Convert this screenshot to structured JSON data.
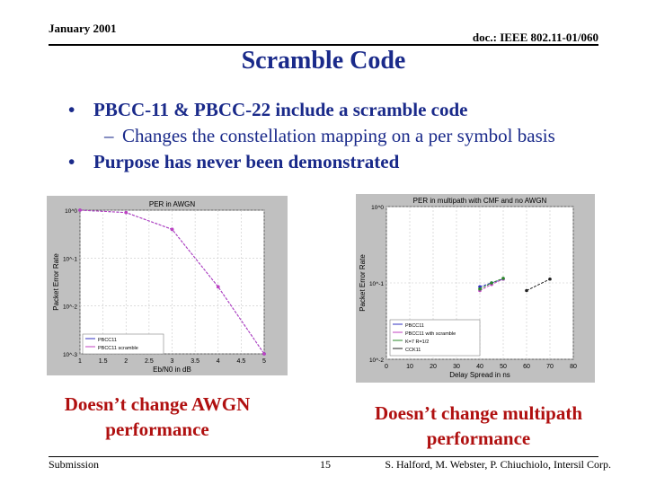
{
  "header": {
    "date": "January 2001",
    "doc": "doc.: IEEE 802.11-01/060"
  },
  "title": "Scramble Code",
  "bullets": [
    {
      "text": "PBCC-11 & PBCC-22 include a scramble code"
    },
    {
      "text": "Purpose has never been demonstrated"
    }
  ],
  "sub_bullet": "Changes the constellation mapping on a per symbol basis",
  "captions": {
    "left": [
      "Doesn’t change AWGN",
      "performance"
    ],
    "right": [
      "Doesn’t change multipath",
      "performance"
    ]
  },
  "footer": {
    "left": "Submission",
    "page": "15",
    "right": "S. Halford, M. Webster, P. Chiuchiolo, Intersil Corp."
  },
  "chart_data": [
    {
      "type": "line",
      "title": "PER in AWGN",
      "xlabel": "Eb/N0 in dB",
      "ylabel": "Packet Error Rate",
      "x_ticks": [
        "1",
        "1.5",
        "2",
        "2.5",
        "3",
        "3.5",
        "4",
        "4.5",
        "5"
      ],
      "y_ticks": [
        "10^0",
        "10^-1",
        "10^-2",
        "10^-3"
      ],
      "xlim": [
        1,
        5
      ],
      "ylim_log10": [
        -3,
        0
      ],
      "series": [
        {
          "name": "PBCC11",
          "color": "#3030c0",
          "x": [
            1,
            2,
            3,
            4,
            5
          ],
          "y_log10": [
            0,
            -0.05,
            -0.4,
            -1.6,
            -3
          ]
        },
        {
          "name": "PBCC11 scramble",
          "color": "#c040c0",
          "x": [
            1,
            2,
            3,
            4,
            5
          ],
          "y_log10": [
            0,
            -0.05,
            -0.4,
            -1.6,
            -3
          ]
        }
      ],
      "grid": true,
      "legend": "bottom-left"
    },
    {
      "type": "line",
      "title": "PER in multipath with CMF and no AWGN",
      "xlabel": "Delay Spread in ns",
      "ylabel": "Packet Error Rate",
      "x_ticks": [
        "0",
        "10",
        "20",
        "30",
        "40",
        "50",
        "60",
        "70",
        "80"
      ],
      "y_ticks": [
        "10^0",
        "10^-1",
        "10^-2"
      ],
      "xlim": [
        0,
        80
      ],
      "ylim_log10": [
        -2,
        0
      ],
      "series": [
        {
          "name": "PBCC11",
          "color": "#3030c0",
          "x": [
            40,
            45,
            50
          ],
          "y_log10": [
            -1.05,
            -1.0,
            -0.95
          ]
        },
        {
          "name": "PBCC11 with scramble",
          "color": "#c040c0",
          "x": [
            40,
            45,
            50
          ],
          "y_log10": [
            -1.1,
            -1.02,
            -0.95
          ]
        },
        {
          "name": "K=7 R=1/2",
          "color": "#2a8a2a",
          "x": [
            40,
            45,
            50
          ],
          "y_log10": [
            -1.08,
            -1.0,
            -0.94
          ]
        },
        {
          "name": "CCK11",
          "color": "#202020",
          "x": [
            60,
            70
          ],
          "y_log10": [
            -1.1,
            -0.95
          ]
        }
      ],
      "grid": true,
      "legend": "bottom-left"
    }
  ]
}
